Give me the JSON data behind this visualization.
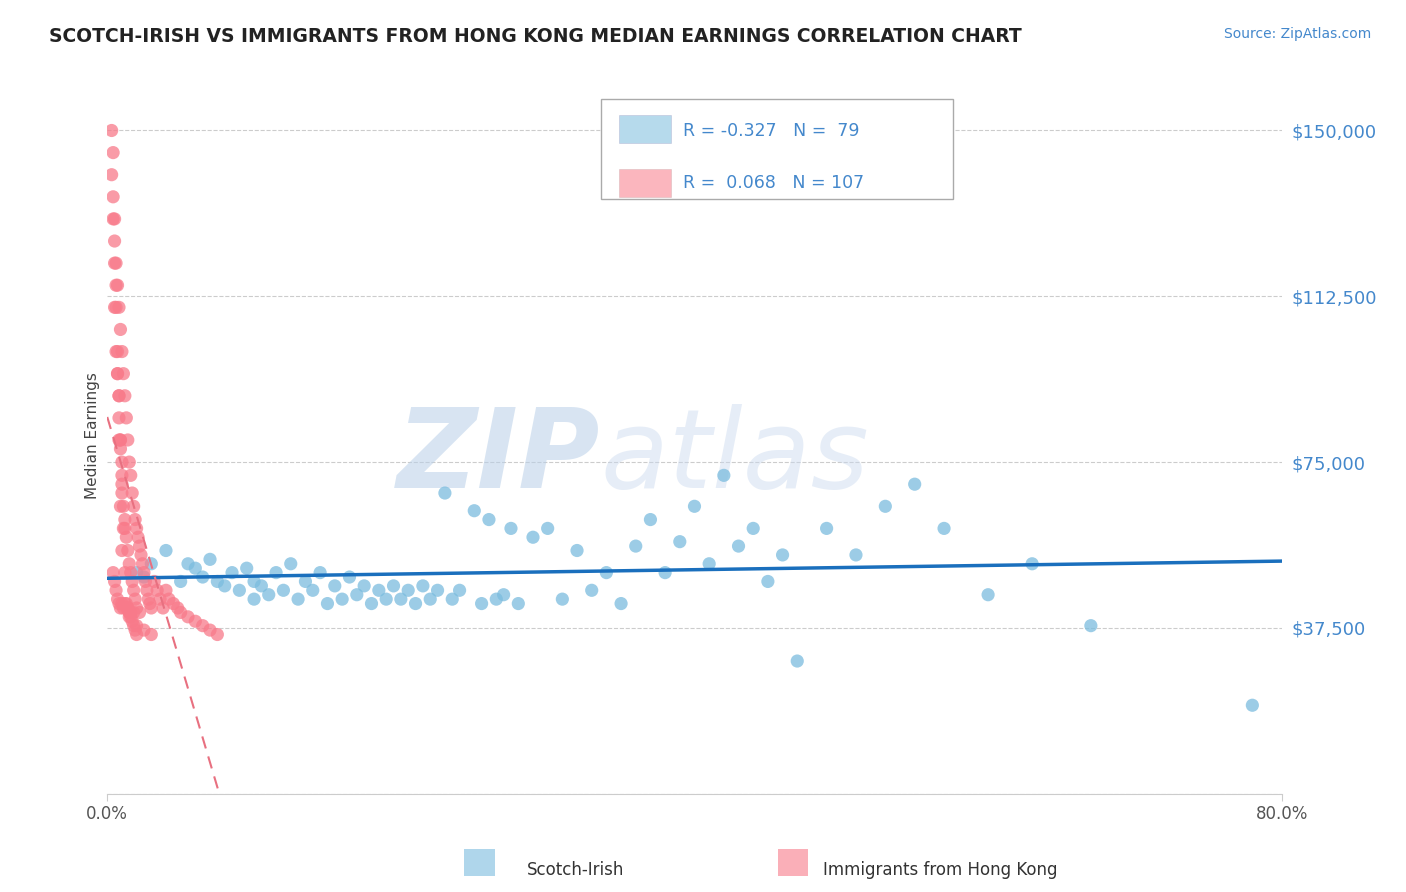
{
  "title": "SCOTCH-IRISH VS IMMIGRANTS FROM HONG KONG MEDIAN EARNINGS CORRELATION CHART",
  "source": "Source: ZipAtlas.com",
  "ylabel": "Median Earnings",
  "watermark_part1": "ZIP",
  "watermark_part2": "atlas",
  "xlim": [
    0.0,
    0.8
  ],
  "ylim": [
    0,
    162000
  ],
  "yticks": [
    0,
    37500,
    75000,
    112500,
    150000
  ],
  "ytick_labels": [
    "",
    "$37,500",
    "$75,000",
    "$112,500",
    "$150,000"
  ],
  "xticks": [
    0.0,
    0.8
  ],
  "xtick_labels": [
    "0.0%",
    "80.0%"
  ],
  "legend_R1": "-0.327",
  "legend_N1": "79",
  "legend_R2": "0.068",
  "legend_N2": "107",
  "scotch_irish_color": "#7bbcde",
  "hk_color": "#f87a8a",
  "trend_blue_color": "#1a6fbd",
  "trend_pink_color": "#e87080",
  "background_color": "#ffffff",
  "title_color": "#222222",
  "axis_label_color": "#4488cc",
  "grid_color": "#cccccc",
  "scotch_irish_x": [
    0.02,
    0.025,
    0.03,
    0.04,
    0.05,
    0.055,
    0.06,
    0.065,
    0.07,
    0.075,
    0.08,
    0.085,
    0.09,
    0.095,
    0.1,
    0.1,
    0.105,
    0.11,
    0.115,
    0.12,
    0.125,
    0.13,
    0.135,
    0.14,
    0.145,
    0.15,
    0.155,
    0.16,
    0.165,
    0.17,
    0.175,
    0.18,
    0.185,
    0.19,
    0.195,
    0.2,
    0.205,
    0.21,
    0.215,
    0.22,
    0.225,
    0.23,
    0.235,
    0.24,
    0.25,
    0.255,
    0.26,
    0.265,
    0.27,
    0.275,
    0.28,
    0.29,
    0.3,
    0.31,
    0.32,
    0.33,
    0.34,
    0.35,
    0.36,
    0.37,
    0.38,
    0.39,
    0.4,
    0.41,
    0.42,
    0.43,
    0.44,
    0.45,
    0.46,
    0.47,
    0.49,
    0.51,
    0.53,
    0.55,
    0.57,
    0.6,
    0.63,
    0.67,
    0.78
  ],
  "scotch_irish_y": [
    50000,
    49000,
    52000,
    55000,
    48000,
    52000,
    51000,
    49000,
    53000,
    48000,
    47000,
    50000,
    46000,
    51000,
    44000,
    48000,
    47000,
    45000,
    50000,
    46000,
    52000,
    44000,
    48000,
    46000,
    50000,
    43000,
    47000,
    44000,
    49000,
    45000,
    47000,
    43000,
    46000,
    44000,
    47000,
    44000,
    46000,
    43000,
    47000,
    44000,
    46000,
    68000,
    44000,
    46000,
    64000,
    43000,
    62000,
    44000,
    45000,
    60000,
    43000,
    58000,
    60000,
    44000,
    55000,
    46000,
    50000,
    43000,
    56000,
    62000,
    50000,
    57000,
    65000,
    52000,
    72000,
    56000,
    60000,
    48000,
    54000,
    30000,
    60000,
    54000,
    65000,
    70000,
    60000,
    45000,
    52000,
    38000,
    20000
  ],
  "hk_x": [
    0.003,
    0.004,
    0.004,
    0.005,
    0.005,
    0.005,
    0.006,
    0.006,
    0.006,
    0.007,
    0.007,
    0.007,
    0.008,
    0.008,
    0.008,
    0.008,
    0.009,
    0.009,
    0.009,
    0.009,
    0.01,
    0.01,
    0.01,
    0.01,
    0.01,
    0.011,
    0.011,
    0.011,
    0.012,
    0.012,
    0.012,
    0.012,
    0.013,
    0.013,
    0.013,
    0.014,
    0.014,
    0.014,
    0.015,
    0.015,
    0.015,
    0.016,
    0.016,
    0.016,
    0.017,
    0.017,
    0.018,
    0.018,
    0.018,
    0.019,
    0.019,
    0.02,
    0.02,
    0.021,
    0.022,
    0.022,
    0.023,
    0.024,
    0.025,
    0.026,
    0.027,
    0.028,
    0.029,
    0.03,
    0.032,
    0.034,
    0.036,
    0.038,
    0.04,
    0.042,
    0.045,
    0.048,
    0.05,
    0.055,
    0.06,
    0.065,
    0.07,
    0.075,
    0.003,
    0.004,
    0.005,
    0.006,
    0.007,
    0.008,
    0.009,
    0.01,
    0.011,
    0.012,
    0.013,
    0.014,
    0.015,
    0.016,
    0.017,
    0.018,
    0.019,
    0.02,
    0.004,
    0.005,
    0.006,
    0.007,
    0.008,
    0.009,
    0.01,
    0.015,
    0.02,
    0.025,
    0.03
  ],
  "hk_y": [
    140000,
    130000,
    50000,
    125000,
    110000,
    48000,
    120000,
    100000,
    46000,
    115000,
    95000,
    44000,
    110000,
    90000,
    85000,
    43000,
    105000,
    80000,
    78000,
    42000,
    100000,
    75000,
    72000,
    68000,
    43000,
    95000,
    65000,
    42000,
    90000,
    62000,
    60000,
    43000,
    85000,
    58000,
    42000,
    80000,
    55000,
    42000,
    75000,
    52000,
    41000,
    72000,
    50000,
    41000,
    68000,
    48000,
    65000,
    46000,
    41000,
    62000,
    44000,
    60000,
    42000,
    58000,
    56000,
    41000,
    54000,
    52000,
    50000,
    48000,
    46000,
    44000,
    43000,
    42000,
    48000,
    46000,
    44000,
    42000,
    46000,
    44000,
    43000,
    42000,
    41000,
    40000,
    39000,
    38000,
    37000,
    36000,
    150000,
    135000,
    120000,
    110000,
    100000,
    90000,
    80000,
    70000,
    60000,
    50000,
    43000,
    42000,
    41000,
    40000,
    39000,
    38000,
    37000,
    36000,
    145000,
    130000,
    115000,
    95000,
    80000,
    65000,
    55000,
    40000,
    38000,
    37000,
    36000
  ]
}
